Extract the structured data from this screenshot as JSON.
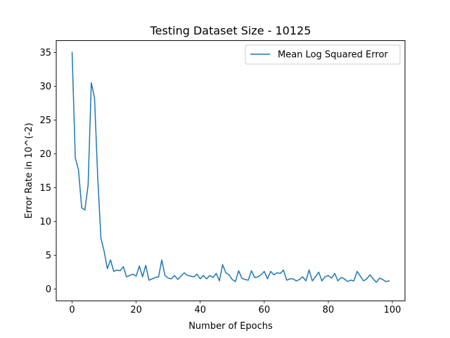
{
  "chart_data": {
    "type": "line",
    "title": "Testing Dataset Size - 10125",
    "xlabel": "Number of Epochs",
    "ylabel": "Error Rate in 10^(-2)",
    "xlim": [
      -4.95,
      103.95
    ],
    "ylim": [
      -1.75,
      36.75
    ],
    "xticks": [
      0,
      20,
      40,
      60,
      80,
      100
    ],
    "yticks": [
      0,
      5,
      10,
      15,
      20,
      25,
      30,
      35
    ],
    "grid": false,
    "legend_position": "upper right",
    "series": [
      {
        "name": "Mean Log Squared Error",
        "color": "#1f77b4",
        "x": [
          0,
          1,
          2,
          3,
          4,
          5,
          6,
          7,
          8,
          9,
          10,
          11,
          12,
          13,
          14,
          15,
          16,
          17,
          18,
          19,
          20,
          21,
          22,
          23,
          24,
          25,
          26,
          27,
          28,
          29,
          30,
          31,
          32,
          33,
          34,
          35,
          36,
          37,
          38,
          39,
          40,
          41,
          42,
          43,
          44,
          45,
          46,
          47,
          48,
          49,
          50,
          51,
          52,
          53,
          54,
          55,
          56,
          57,
          58,
          59,
          60,
          61,
          62,
          63,
          64,
          65,
          66,
          67,
          68,
          69,
          70,
          71,
          72,
          73,
          74,
          75,
          76,
          77,
          78,
          79,
          80,
          81,
          82,
          83,
          84,
          85,
          86,
          87,
          88,
          89,
          90,
          91,
          92,
          93,
          94,
          95,
          96,
          97,
          98,
          99
        ],
        "values": [
          35.0,
          19.4,
          17.6,
          12.0,
          11.7,
          15.4,
          30.5,
          28.3,
          16.5,
          7.5,
          5.6,
          3.0,
          4.3,
          2.6,
          2.8,
          2.7,
          3.3,
          1.8,
          2.0,
          2.2,
          1.9,
          3.4,
          1.8,
          3.5,
          1.3,
          1.5,
          1.7,
          1.8,
          4.3,
          2.0,
          1.6,
          1.5,
          2.0,
          1.4,
          1.9,
          2.4,
          2.0,
          1.9,
          1.8,
          2.2,
          1.5,
          2.0,
          1.5,
          2.0,
          1.7,
          2.3,
          1.2,
          3.6,
          2.4,
          2.1,
          1.4,
          1.1,
          2.7,
          1.6,
          1.4,
          1.3,
          2.7,
          1.7,
          1.8,
          2.1,
          2.6,
          1.5,
          2.6,
          2.1,
          2.4,
          2.3,
          2.8,
          1.3,
          1.5,
          1.5,
          1.2,
          1.4,
          1.8,
          1.2,
          2.8,
          1.2,
          1.8,
          2.5,
          1.2,
          1.8,
          2.0,
          1.6,
          2.3,
          1.2,
          1.7,
          1.5,
          1.1,
          1.3,
          1.2,
          2.6,
          1.9,
          1.2,
          1.5,
          2.1,
          1.5,
          1.0,
          1.6,
          1.4,
          1.1,
          1.2
        ]
      }
    ]
  }
}
